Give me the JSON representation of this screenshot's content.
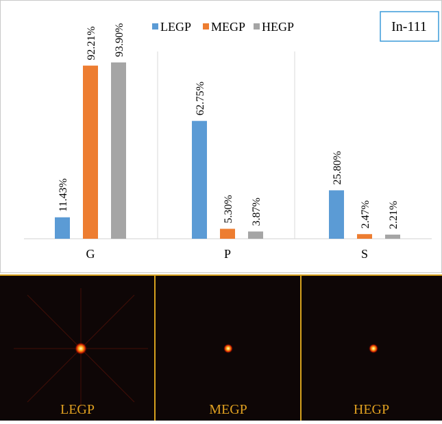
{
  "chart_data": {
    "type": "bar",
    "annotation": "In-111",
    "categories": [
      "G",
      "P",
      "S"
    ],
    "series": [
      {
        "name": "LEGP",
        "color": "#5b9bd5",
        "values": [
          11.43,
          62.75,
          25.8
        ],
        "value_labels": [
          "11.43%",
          "62.75%",
          "25.80%"
        ]
      },
      {
        "name": "MEGP",
        "color": "#ed7d31",
        "values": [
          92.21,
          5.3,
          2.47
        ],
        "value_labels": [
          "92.21%",
          "5.30%",
          "2.47%"
        ]
      },
      {
        "name": "HEGP",
        "color": "#a5a5a5",
        "values": [
          93.9,
          3.87,
          2.21
        ],
        "value_labels": [
          "93.90%",
          "3.87%",
          "2.21%"
        ]
      }
    ]
  },
  "panels": [
    "LEGP",
    "MEGP",
    "HEGP"
  ]
}
